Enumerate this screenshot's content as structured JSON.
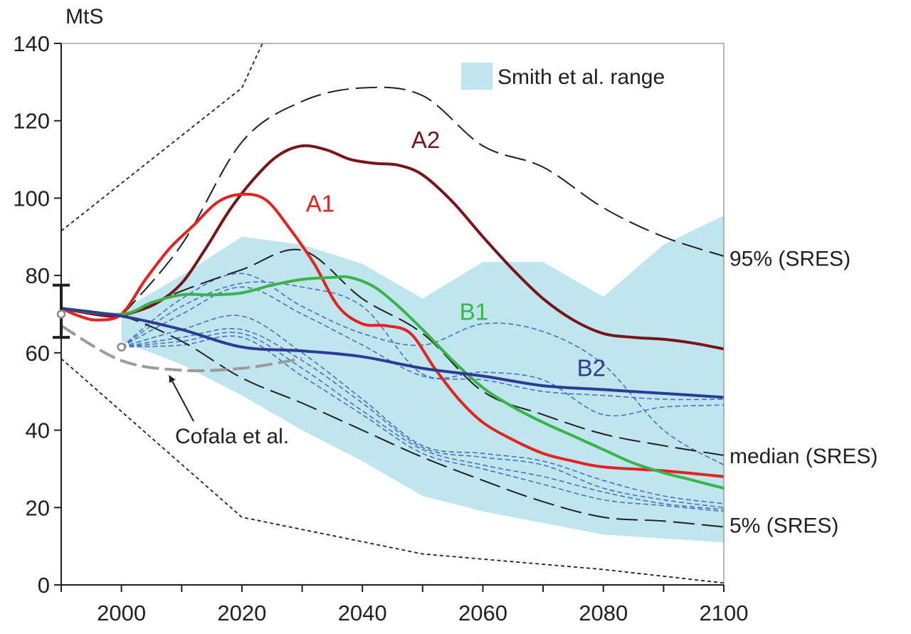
{
  "chart_data": {
    "type": "line",
    "title": "",
    "ylabel": "MtS",
    "xlabel": "",
    "xlim": [
      1990,
      2100
    ],
    "ylim": [
      0,
      140
    ],
    "x_ticks": [
      2000,
      2020,
      2040,
      2060,
      2080,
      2100
    ],
    "y_ticks": [
      0,
      20,
      40,
      60,
      80,
      100,
      120,
      140
    ],
    "grid": false,
    "legend": {
      "position": "top-right",
      "entries": [
        {
          "label": "Smith et al. range",
          "color": "#bfe6ee"
        }
      ]
    },
    "range_band": {
      "name": "Smith et al. range",
      "color": "#bfe6ee",
      "x": [
        2000,
        2010,
        2020,
        2030,
        2040,
        2050,
        2060,
        2070,
        2080,
        2090,
        2100
      ],
      "upper": [
        71,
        80,
        90,
        88,
        83,
        74,
        83.5,
        83.5,
        74.5,
        88,
        95.5
      ],
      "lower": [
        63,
        57,
        49,
        40,
        32,
        23,
        19,
        16,
        13,
        12,
        11
      ]
    },
    "bounds": [
      {
        "name": "upper-bound",
        "style": "short-dash",
        "color": "#231f20",
        "x": [
          1990,
          2020,
          2024
        ],
        "y": [
          91.5,
          128.5,
          142
        ]
      },
      {
        "name": "lower-bound",
        "style": "short-dash",
        "color": "#231f20",
        "x": [
          1990,
          2020,
          2050,
          2080,
          2100
        ],
        "y": [
          58.5,
          17.5,
          8,
          4,
          0.5
        ]
      },
      {
        "name": "95% (SRES)",
        "style": "long-dash",
        "color": "#231f20",
        "x": [
          2000,
          2010,
          2020,
          2030,
          2040,
          2050,
          2060,
          2070,
          2080,
          2090,
          2100
        ],
        "y": [
          69.5,
          88,
          114.5,
          125,
          128.5,
          126.5,
          113.5,
          108,
          97.5,
          90,
          85
        ]
      },
      {
        "name": "median (SRES)",
        "style": "long-dash",
        "color": "#231f20",
        "x": [
          2000,
          2010,
          2020,
          2030,
          2040,
          2050,
          2060,
          2070,
          2080,
          2090,
          2100
        ],
        "y": [
          69.5,
          76,
          81.5,
          86.5,
          74,
          65,
          50,
          44,
          39,
          36,
          33.5
        ]
      },
      {
        "name": "5% (SRES)",
        "style": "long-dash",
        "color": "#231f20",
        "x": [
          1990,
          2000,
          2010,
          2020,
          2030,
          2040,
          2050,
          2060,
          2070,
          2080,
          2090,
          2100
        ],
        "y": [
          71,
          69.5,
          63,
          53.5,
          47,
          40,
          33,
          27,
          21.5,
          17.5,
          16.5,
          15
        ]
      }
    ],
    "series": [
      {
        "name": "A2",
        "color": "#7a1417",
        "width": 4,
        "x": [
          1990,
          1998,
          2002,
          2006,
          2010,
          2014,
          2018,
          2022,
          2026,
          2030,
          2034,
          2038,
          2042,
          2046,
          2050,
          2055,
          2060,
          2065,
          2070,
          2075,
          2080,
          2085,
          2090,
          2095,
          2100
        ],
        "y": [
          71.5,
          69.5,
          70.5,
          73,
          78,
          87,
          97,
          105,
          111,
          113.5,
          112.5,
          110,
          109,
          108.5,
          106,
          99,
          90,
          81.5,
          74,
          68.5,
          65,
          64,
          63.5,
          62.5,
          61
        ]
      },
      {
        "name": "A1",
        "color": "#e4221f",
        "width": 4,
        "x": [
          1990,
          1993,
          1996,
          2000,
          2004,
          2008,
          2012,
          2016,
          2020,
          2024,
          2028,
          2032,
          2036,
          2040,
          2044,
          2048,
          2052,
          2056,
          2060,
          2065,
          2070,
          2075,
          2080,
          2090,
          2100
        ],
        "y": [
          71.5,
          69.5,
          68.5,
          70,
          79,
          87,
          93,
          99,
          101,
          99.5,
          92,
          83,
          72,
          67.5,
          67,
          65,
          56,
          48,
          42,
          37.5,
          34,
          32,
          30.5,
          29.5,
          28
        ]
      },
      {
        "name": "B1",
        "color": "#3ab449",
        "width": 4,
        "x": [
          1990,
          2000,
          2005,
          2010,
          2015,
          2020,
          2025,
          2030,
          2035,
          2038,
          2042,
          2046,
          2050,
          2055,
          2060,
          2065,
          2070,
          2075,
          2080,
          2085,
          2090,
          2095,
          2100
        ],
        "y": [
          71.5,
          70,
          73,
          75,
          75,
          75.5,
          77.5,
          79,
          79.5,
          79.5,
          77,
          72,
          66,
          58,
          51,
          46,
          42,
          38.5,
          35,
          31.5,
          29,
          27,
          25
        ]
      },
      {
        "name": "B2",
        "color": "#2d3b94",
        "width": 4,
        "x": [
          1990,
          2000,
          2010,
          2020,
          2030,
          2040,
          2050,
          2060,
          2070,
          2080,
          2090,
          2100
        ],
        "y": [
          71.5,
          69.5,
          66,
          61.5,
          60.5,
          59,
          56,
          54,
          51.5,
          50.5,
          49.5,
          48.5
        ]
      }
    ],
    "b2_variants": {
      "color": "#4a6fc4",
      "x": [
        2000,
        2010,
        2020,
        2030,
        2040,
        2050,
        2060,
        2070,
        2080,
        2090,
        2100
      ],
      "lines": [
        [
          61.5,
          74,
          80.5,
          72,
          65,
          62,
          67.5,
          65.5,
          57,
          40,
          31
        ],
        [
          61.5,
          72,
          78,
          77,
          72,
          54.5,
          55,
          53,
          44,
          46,
          46.5
        ],
        [
          61.5,
          70,
          77,
          70,
          62,
          54,
          53,
          50,
          49,
          48,
          48
        ],
        [
          61.5,
          66,
          69.5,
          60,
          48,
          36,
          34,
          32,
          27,
          23,
          21
        ],
        [
          61.5,
          64,
          66,
          58,
          47,
          35.5,
          33,
          31,
          25,
          22,
          20
        ],
        [
          61.5,
          63,
          65,
          56,
          45,
          35,
          31,
          28,
          24,
          21,
          19.5
        ],
        [
          61.5,
          62,
          64,
          54,
          44,
          34,
          30,
          26,
          22,
          20.5,
          19
        ]
      ]
    },
    "cofala": {
      "name": "Cofala et al.",
      "color": "#9b9b9b",
      "x": [
        1990,
        2000,
        2010,
        2020,
        2030
      ],
      "y": [
        67,
        58,
        55.5,
        56,
        58.5
      ]
    },
    "historical_markers": [
      {
        "x": 1990,
        "y": 70
      },
      {
        "x": 2000,
        "y": 61.5
      }
    ],
    "uncertainty_bar": {
      "x": 1990,
      "low": 64,
      "high": 77.5
    },
    "annotations": {
      "scenario_labels": [
        {
          "text": "A2",
          "color": "#7a1417",
          "x": 2050.5,
          "y": 113
        },
        {
          "text": "A1",
          "color": "#e4221f",
          "x": 2033,
          "y": 96.5
        },
        {
          "text": "B1",
          "color": "#3ab449",
          "x": 2058.5,
          "y": 68.5
        },
        {
          "text": "B2",
          "color": "#2d3b94",
          "x": 2078,
          "y": 54
        }
      ],
      "right_labels": [
        {
          "text": "95% (SRES)",
          "y": 84.5
        },
        {
          "text": "median (SRES)",
          "y": 33.5
        },
        {
          "text": "5% (SRES)",
          "y": 15.5
        }
      ],
      "cofala_label": "Cofala et al."
    }
  }
}
